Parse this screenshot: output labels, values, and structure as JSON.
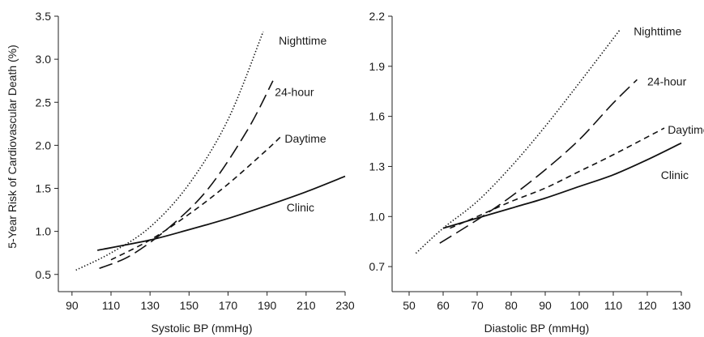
{
  "y_axis_title": "5-Year Risk of Cardiovascular Death (%)",
  "colors": {
    "line": "#111111",
    "axis": "#222222",
    "text": "#1a1a1a"
  },
  "chart_data": [
    {
      "type": "line",
      "xlabel": "Systolic BP (mmHg)",
      "ylabel": "5-Year Risk of Cardiovascular Death (%)",
      "xlim": [
        83,
        230
      ],
      "ylim": [
        0.3,
        3.5
      ],
      "xticks": [
        90,
        110,
        130,
        150,
        170,
        190,
        210,
        230
      ],
      "yticks": [
        0.5,
        1.0,
        1.5,
        2.0,
        2.5,
        3.0,
        3.5
      ],
      "x_tick_labels": [
        "90",
        "110",
        "130",
        "150",
        "170",
        "190",
        "210",
        "230"
      ],
      "y_tick_labels": [
        "0.5",
        "1.0",
        "1.5",
        "2.0",
        "2.5",
        "3.0",
        "3.5"
      ],
      "grid": false,
      "series": [
        {
          "name": "Nighttime",
          "style": "dotted",
          "x": [
            92,
            110,
            130,
            150,
            170,
            188
          ],
          "y": [
            0.55,
            0.75,
            1.05,
            1.55,
            2.3,
            3.32
          ]
        },
        {
          "name": "24-hour",
          "style": "long-dash",
          "x": [
            104,
            120,
            140,
            160,
            180,
            193
          ],
          "y": [
            0.57,
            0.72,
            1.05,
            1.5,
            2.18,
            2.75
          ]
        },
        {
          "name": "Daytime",
          "style": "short-dash",
          "x": [
            110,
            130,
            150,
            170,
            190,
            197
          ],
          "y": [
            0.67,
            0.9,
            1.2,
            1.55,
            1.95,
            2.1
          ]
        },
        {
          "name": "Clinic",
          "style": "solid",
          "x": [
            103,
            130,
            150,
            170,
            190,
            210,
            230
          ],
          "y": [
            0.78,
            0.9,
            1.02,
            1.15,
            1.3,
            1.46,
            1.64
          ]
        }
      ],
      "label_points": [
        {
          "text": "Nighttime",
          "x": 196,
          "y": 3.22
        },
        {
          "text": "24-hour",
          "x": 194,
          "y": 2.62
        },
        {
          "text": "Daytime",
          "x": 199,
          "y": 2.08
        },
        {
          "text": "Clinic",
          "x": 200,
          "y": 1.28
        }
      ]
    },
    {
      "type": "line",
      "xlabel": "Diastolic BP (mmHg)",
      "ylabel": "",
      "xlim": [
        45,
        130
      ],
      "ylim": [
        0.55,
        2.2
      ],
      "xticks": [
        50,
        60,
        70,
        80,
        90,
        100,
        110,
        120,
        130
      ],
      "yticks": [
        0.7,
        1.0,
        1.3,
        1.6,
        1.9,
        2.2
      ],
      "x_tick_labels": [
        "50",
        "60",
        "70",
        "80",
        "90",
        "100",
        "110",
        "120",
        "130"
      ],
      "y_tick_labels": [
        "0.7",
        "1.0",
        "1.3",
        "1.6",
        "1.9",
        "2.2"
      ],
      "grid": false,
      "series": [
        {
          "name": "Nighttime",
          "style": "dotted",
          "x": [
            52,
            60,
            70,
            80,
            90,
            100,
            112
          ],
          "y": [
            0.78,
            0.93,
            1.09,
            1.3,
            1.54,
            1.8,
            2.12
          ]
        },
        {
          "name": "24-hour",
          "style": "long-dash",
          "x": [
            59,
            70,
            80,
            90,
            100,
            110,
            117
          ],
          "y": [
            0.84,
            0.98,
            1.12,
            1.28,
            1.46,
            1.68,
            1.82
          ]
        },
        {
          "name": "Daytime",
          "style": "short-dash",
          "x": [
            62,
            70,
            80,
            90,
            100,
            110,
            125
          ],
          "y": [
            0.93,
            1.0,
            1.09,
            1.17,
            1.27,
            1.37,
            1.53
          ]
        },
        {
          "name": "Clinic",
          "style": "solid",
          "x": [
            60,
            70,
            80,
            90,
            100,
            110,
            120,
            130
          ],
          "y": [
            0.93,
            0.99,
            1.05,
            1.11,
            1.18,
            1.25,
            1.34,
            1.44
          ]
        }
      ],
      "label_points": [
        {
          "text": "Nighttime",
          "x": 116,
          "y": 2.11
        },
        {
          "text": "24-hour",
          "x": 120,
          "y": 1.81
        },
        {
          "text": "Daytime",
          "x": 126,
          "y": 1.52
        },
        {
          "text": "Clinic",
          "x": 124,
          "y": 1.25
        }
      ]
    }
  ]
}
